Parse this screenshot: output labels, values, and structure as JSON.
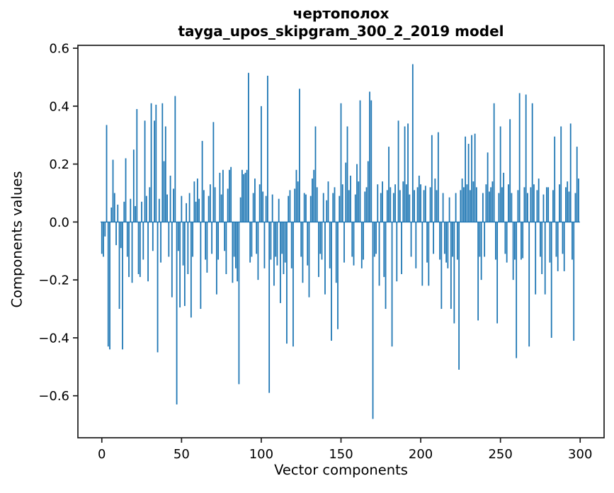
{
  "title": {
    "word": "чертополох",
    "model_line": "tayga_upos_skipgram_300_2_2019 model"
  },
  "colors": {
    "bar": "#1f77b4",
    "axis": "#1a1a1a",
    "text": "#000000",
    "background": "#ffffff"
  },
  "chart_data": {
    "type": "bar",
    "title": "чертополох",
    "subtitle": "tayga_upos_skipgram_300_2_2019 model",
    "xlabel": "Vector components",
    "ylabel": "Components values",
    "xlim": [
      -15,
      315
    ],
    "ylim": [
      -0.745,
      0.61
    ],
    "xticks": [
      0,
      50,
      100,
      150,
      200,
      250,
      300
    ],
    "yticks": [
      0.6,
      0.4,
      0.2,
      0.0,
      -0.2,
      -0.4,
      -0.6
    ],
    "ytick_labels": [
      "0.6",
      "0.4",
      "0.2",
      "0.0",
      "−0.2",
      "−0.4",
      "−0.6"
    ],
    "grid": false,
    "legend": "none",
    "bar_color": "#1f77b4",
    "n_components": 300,
    "values": [
      -0.11,
      -0.12,
      -0.05,
      0.335,
      -0.43,
      -0.44,
      0.05,
      0.215,
      0.1,
      -0.08,
      0.06,
      -0.3,
      -0.09,
      -0.44,
      0.07,
      0.22,
      -0.12,
      -0.19,
      0.08,
      -0.21,
      0.25,
      0.055,
      0.39,
      -0.18,
      -0.19,
      0.07,
      -0.13,
      0.35,
      0.09,
      -0.205,
      0.12,
      0.41,
      -0.1,
      0.35,
      0.405,
      -0.45,
      0.08,
      -0.14,
      0.41,
      0.21,
      0.33,
      0.095,
      -0.12,
      0.16,
      -0.26,
      0.115,
      0.435,
      -0.63,
      -0.1,
      -0.295,
      0.09,
      -0.15,
      -0.29,
      0.065,
      -0.18,
      0.1,
      -0.33,
      -0.12,
      0.14,
      0.07,
      0.15,
      0.08,
      -0.3,
      0.28,
      0.11,
      -0.13,
      -0.175,
      0.09,
      0.13,
      -0.11,
      0.345,
      0.12,
      -0.25,
      -0.13,
      0.17,
      0.095,
      0.18,
      -0.1,
      -0.18,
      0.115,
      0.18,
      0.19,
      -0.21,
      -0.12,
      -0.16,
      -0.205,
      -0.56,
      0.085,
      0.18,
      0.165,
      0.17,
      0.18,
      0.515,
      -0.14,
      -0.12,
      0.1,
      0.15,
      -0.11,
      -0.2,
      0.13,
      0.4,
      0.105,
      -0.16,
      0.09,
      0.505,
      -0.59,
      -0.13,
      0.095,
      -0.22,
      -0.12,
      -0.15,
      0.08,
      -0.28,
      -0.11,
      -0.18,
      -0.14,
      -0.42,
      0.09,
      0.11,
      -0.16,
      -0.43,
      0.115,
      0.18,
      0.14,
      0.46,
      -0.12,
      -0.21,
      0.1,
      0.095,
      -0.15,
      -0.26,
      0.09,
      0.15,
      0.18,
      0.33,
      0.12,
      -0.19,
      -0.11,
      -0.13,
      0.1,
      -0.25,
      0.075,
      0.14,
      -0.16,
      -0.41,
      0.1,
      0.12,
      -0.21,
      -0.37,
      0.09,
      0.41,
      0.13,
      -0.14,
      0.205,
      0.33,
      0.11,
      0.16,
      -0.12,
      -0.15,
      0.095,
      0.2,
      0.14,
      0.42,
      -0.16,
      -0.13,
      0.105,
      0.12,
      0.21,
      0.45,
      0.42,
      -0.68,
      -0.12,
      -0.11,
      0.13,
      -0.22,
      0.1,
      0.14,
      -0.19,
      -0.3,
      0.11,
      0.26,
      0.12,
      -0.43,
      0.1,
      0.13,
      -0.205,
      0.35,
      0.11,
      -0.18,
      0.14,
      0.33,
      0.13,
      0.34,
      0.095,
      -0.12,
      0.545,
      0.11,
      -0.16,
      0.12,
      0.16,
      0.13,
      -0.22,
      0.11,
      0.125,
      -0.14,
      -0.22,
      0.12,
      0.3,
      -0.11,
      0.15,
      0.11,
      0.31,
      -0.13,
      -0.3,
      0.1,
      -0.11,
      -0.14,
      -0.16,
      0.085,
      -0.3,
      -0.12,
      -0.35,
      0.1,
      -0.13,
      -0.51,
      0.11,
      0.15,
      0.12,
      0.295,
      0.13,
      0.27,
      0.11,
      0.3,
      0.14,
      0.305,
      0.12,
      -0.34,
      -0.12,
      -0.2,
      0.1,
      -0.12,
      0.13,
      0.24,
      0.105,
      0.12,
      0.14,
      0.41,
      -0.13,
      -0.35,
      0.1,
      0.33,
      0.12,
      0.17,
      -0.11,
      -0.14,
      0.13,
      0.355,
      0.1,
      -0.2,
      -0.13,
      -0.47,
      0.11,
      0.445,
      -0.13,
      -0.125,
      0.12,
      0.44,
      0.1,
      -0.43,
      0.12,
      0.41,
      0.13,
      -0.25,
      0.11,
      0.15,
      -0.12,
      -0.18,
      0.095,
      -0.25,
      0.12,
      0.12,
      -0.14,
      -0.4,
      0.11,
      0.295,
      -0.12,
      -0.17,
      0.13,
      0.33,
      -0.11,
      -0.17,
      0.12,
      0.14,
      0.105,
      0.34,
      -0.13,
      -0.41,
      0.1,
      0.26,
      0.15
    ]
  }
}
